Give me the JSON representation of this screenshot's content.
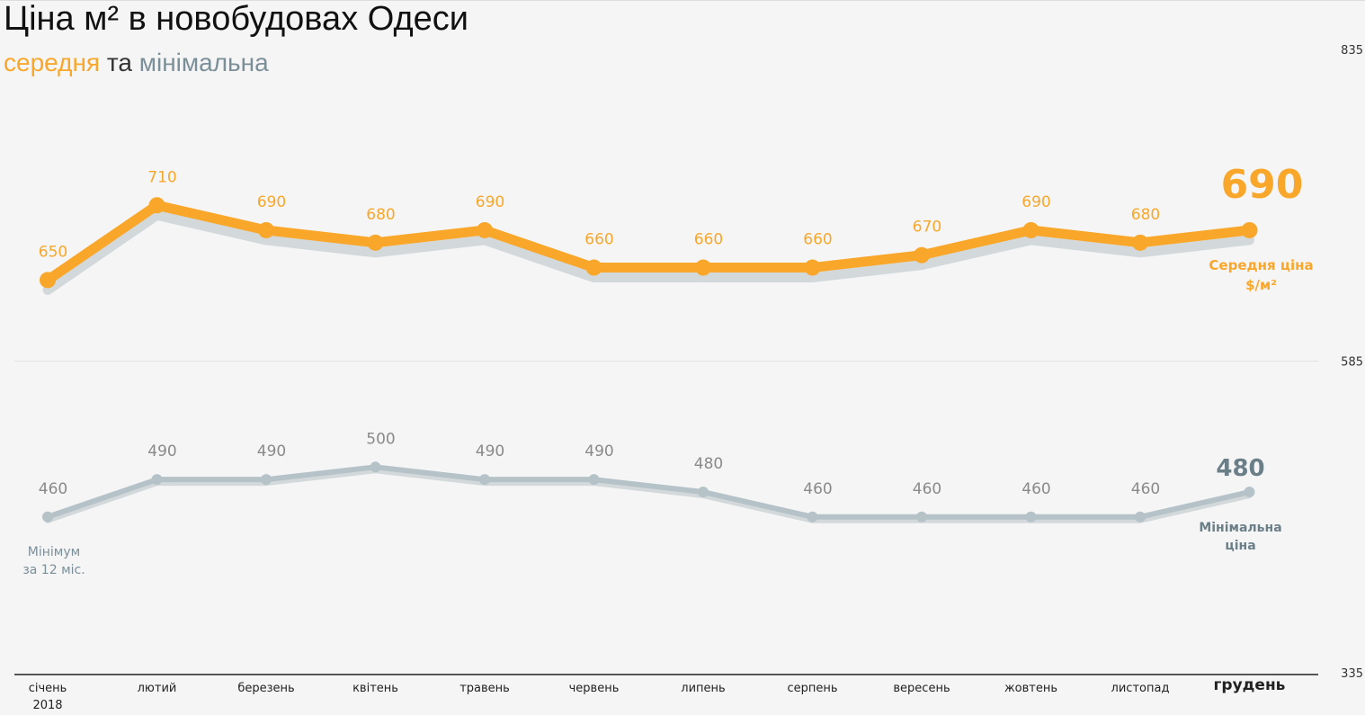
{
  "title": "Ціна м² в новобудовах Одеси",
  "subtitle": {
    "avg_word": "середня",
    "and_word": "та",
    "min_word": "мінімальна"
  },
  "colors": {
    "average": "#f9a72b",
    "minimum": "#b5c3c8",
    "shadow": "#d3d9db",
    "minimum_label": "#6b7f88",
    "background": "#f5f5f5"
  },
  "chart_data": {
    "type": "line",
    "title": "Ціна м² в новобудовах Одеси",
    "categories": [
      "січень",
      "лютий",
      "березень",
      "квітень",
      "травень",
      "червень",
      "липень",
      "серпень",
      "вересень",
      "жовтень",
      "листопад",
      "грудень"
    ],
    "year_label": "2018",
    "y_ticks": [
      835,
      585,
      335
    ],
    "ylim": [
      335,
      835
    ],
    "grid": "horizontal line at 585",
    "series": [
      {
        "key": "average",
        "values": [
          650,
          710,
          690,
          680,
          690,
          660,
          660,
          660,
          670,
          690,
          680,
          690
        ]
      },
      {
        "key": "minimum",
        "values": [
          460,
          490,
          490,
          500,
          490,
          490,
          480,
          460,
          460,
          460,
          460,
          480
        ]
      }
    ],
    "annotations": {
      "average_last_value": "690",
      "average_label_line1": "Середня ціна",
      "average_label_line2": "$/м²",
      "minimum_last_value": "480",
      "minimum_label_line1": "Мінімальна",
      "minimum_label_line2": "ціна",
      "minimum_note_line1": "Мінімум",
      "minimum_note_line2": "за 12 міс."
    }
  }
}
